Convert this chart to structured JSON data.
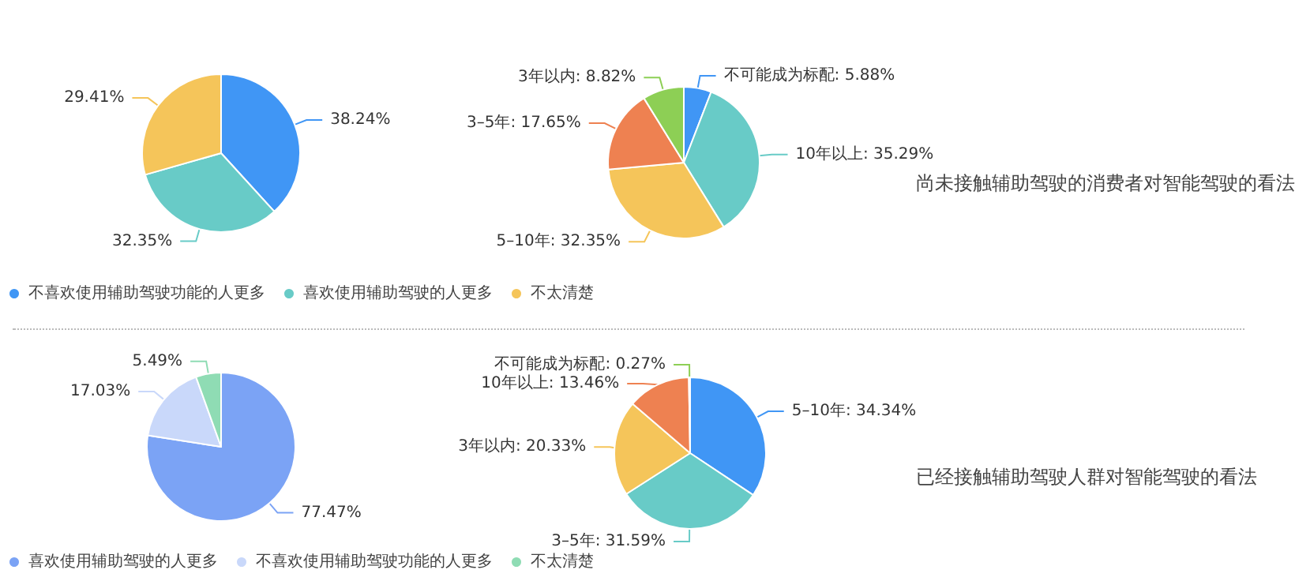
{
  "chart_data": [
    {
      "type": "pie",
      "categories": [
        "不喜欢使用辅助驾驶功能的人更多",
        "喜欢使用辅助驾驶的人更多",
        "不太清楚"
      ],
      "values": [
        38.24,
        32.35,
        29.41
      ],
      "colors": [
        "#4096f5",
        "#68cbc7",
        "#f5c55a"
      ],
      "value_labels": [
        "38.24%",
        "32.35%",
        "29.41%"
      ],
      "legend": "bottom"
    },
    {
      "type": "pie",
      "title": "尚未接触辅助驾驶的消费者对智能驾驶的看法",
      "categories": [
        "不可能成为标配",
        "10年以上",
        "5–10年",
        "3–5年",
        "3年以内"
      ],
      "values": [
        5.88,
        35.29,
        32.35,
        17.65,
        8.82
      ],
      "colors": [
        "#4096f5",
        "#68cbc7",
        "#f5c55a",
        "#ee8151",
        "#8dcf55"
      ],
      "value_labels": [
        "5.88%",
        "35.29%",
        "32.35%",
        "17.65%",
        "8.82%"
      ]
    },
    {
      "type": "pie",
      "categories": [
        "喜欢使用辅助驾驶的人更多",
        "不喜欢使用辅助驾驶功能的人更多",
        "不太清楚"
      ],
      "values": [
        77.47,
        17.03,
        5.49
      ],
      "colors": [
        "#7ba3f5",
        "#c9d8fa",
        "#8fdcb4"
      ],
      "value_labels": [
        "77.47%",
        "17.03%",
        "5.49%"
      ],
      "legend": "bottom"
    },
    {
      "type": "pie",
      "title": "已经接触辅助驾驶人群对智能驾驶的看法",
      "categories": [
        "5–10年",
        "3–5年",
        "3年以内",
        "10年以上",
        "不可能成为标配"
      ],
      "values": [
        34.34,
        31.59,
        20.33,
        13.46,
        0.27
      ],
      "colors": [
        "#4096f5",
        "#68cbc7",
        "#f5c55a",
        "#ee8151",
        "#8dcf55"
      ],
      "value_labels": [
        "34.34%",
        "31.59%",
        "20.33%",
        "13.46%",
        "0.27%"
      ]
    }
  ]
}
